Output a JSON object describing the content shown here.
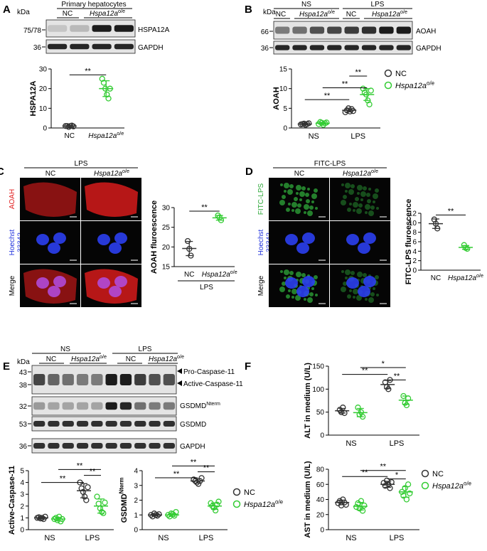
{
  "figure": {
    "panels": {
      "A": {
        "letter": "A",
        "kda": "kDa",
        "header": "Primary hepatocytes",
        "lanes": [
          "NC",
          {
            "text": "Hspa12a",
            "sup": "o/e"
          }
        ],
        "markers": [
          "75/78",
          "36"
        ],
        "bands": [
          "HSPA12A",
          "GAPDH"
        ]
      },
      "B": {
        "letter": "B",
        "kda": "kDa",
        "groups": [
          "NS",
          "LPS"
        ],
        "lanes": [
          "NC",
          {
            "text": "Hspa12a",
            "sup": "o/e"
          },
          "NC",
          {
            "text": "Hspa12a",
            "sup": "o/e"
          }
        ],
        "markers": [
          "66",
          "36"
        ],
        "bands": [
          "AOAH",
          "GAPDH"
        ]
      },
      "C": {
        "letter": "C",
        "header": "LPS",
        "lanes": [
          "NC",
          {
            "text": "Hspa12a",
            "sup": "o/e"
          }
        ],
        "rows": [
          "AOAH",
          [
            "Hoechst",
            "33342"
          ],
          "Merge"
        ]
      },
      "D": {
        "letter": "D",
        "header": "FITC-LPS",
        "lanes": [
          "NC",
          {
            "text": "Hspa12a",
            "sup": "o/e"
          }
        ],
        "rows": [
          "FITC-LPS",
          [
            "Hoechst",
            "33342"
          ],
          "Merge"
        ]
      },
      "E": {
        "letter": "E",
        "kda": "kDa",
        "groups": [
          "NS",
          "LPS"
        ],
        "lanes": [
          "NC",
          {
            "text": "Hspa12a",
            "sup": "o/e"
          },
          "NC",
          {
            "text": "Hspa12a",
            "sup": "o/e"
          }
        ],
        "markers": [
          "43",
          "38",
          "32",
          "53",
          "36"
        ],
        "bands": [
          "Pro-Caspase-11",
          "Active-Caspase-11",
          {
            "text": "GSDMD",
            "sup": "Nterm"
          },
          "GSDMD",
          "GAPDH"
        ]
      },
      "F": {
        "letter": "F"
      }
    }
  },
  "chart_data": [
    {
      "type": "dot",
      "ylabel": "HSPA12A",
      "categories": [
        "NC",
        {
          "text": "Hspa12a",
          "sup": "o/e"
        }
      ],
      "colors": [
        "#333333",
        "#33cc33"
      ],
      "values": [
        [
          1,
          1,
          0.5,
          1,
          1.2,
          0.8
        ],
        [
          25,
          23,
          20,
          17,
          15,
          20
        ]
      ],
      "mean": [
        1,
        20
      ],
      "sd": [
        0.3,
        4
      ],
      "ylim": [
        0,
        30
      ],
      "yticks": [
        0,
        10,
        20,
        30
      ],
      "annotations": [
        "**"
      ]
    },
    {
      "type": "dot",
      "ylabel": "AOAH",
      "categories": [
        "NS",
        "LPS"
      ],
      "series": [
        {
          "name": "NC",
          "color": "#333333",
          "values": [
            [
              0.9,
              1,
              1.1,
              0.8,
              1,
              1.2
            ],
            [
              4,
              4.5,
              5,
              4.2,
              4.8,
              4.3
            ]
          ],
          "mean": [
            1,
            4.5
          ],
          "sd": [
            0.15,
            0.4
          ]
        },
        {
          "name": {
            "text": "Hspa12a",
            "sup": "o/e"
          },
          "color": "#33cc33",
          "values": [
            [
              1,
              1.5,
              1.3,
              0.8,
              1.2,
              1.4
            ],
            [
              10,
              9,
              8.5,
              7,
              6,
              9.5
            ]
          ],
          "mean": [
            1.2,
            8.5
          ],
          "sd": [
            0.25,
            1.5
          ]
        }
      ],
      "ylim": [
        0,
        15
      ],
      "yticks": [
        0,
        5,
        10,
        15
      ],
      "annotations": [
        "**",
        "**",
        "**"
      ]
    },
    {
      "type": "dot",
      "ylabel": "AOAH fluroescence",
      "categories": [
        "NC",
        {
          "text": "Hspa12a",
          "sup": "o/e"
        }
      ],
      "xgroup": "LPS",
      "colors": [
        "#333333",
        "#33cc33"
      ],
      "values": [
        [
          21.5,
          19.5,
          17.8
        ],
        [
          28,
          27.5,
          26.8
        ]
      ],
      "mean": [
        19.6,
        27.4
      ],
      "sd": [
        1.8,
        0.6
      ],
      "ylim": [
        15,
        30
      ],
      "yticks": [
        15,
        20,
        25,
        30
      ],
      "annotations": [
        "**"
      ]
    },
    {
      "type": "dot",
      "ylabel": "FITC-LPS fluroescence",
      "categories": [
        "NC",
        {
          "text": "Hspa12a",
          "sup": "o/e"
        }
      ],
      "colors": [
        "#333333",
        "#33cc33"
      ],
      "values": [
        [
          10.7,
          9.8,
          8.8
        ],
        [
          5.3,
          4.7,
          4.5
        ]
      ],
      "mean": [
        9.8,
        4.8
      ],
      "sd": [
        1,
        0.4
      ],
      "ylim": [
        0,
        12
      ],
      "yticks": [
        0,
        2,
        4,
        6,
        8,
        10,
        12
      ],
      "annotations": [
        "**"
      ]
    },
    {
      "type": "dot",
      "ylabel": "Active-Caspase-11",
      "categories": [
        "NS",
        "LPS"
      ],
      "series": [
        {
          "name": "NC",
          "color": "#333333",
          "values": [
            [
              1,
              1.05,
              0.95,
              1,
              0.9,
              1.1
            ],
            [
              4,
              3.5,
              3.2,
              2.8,
              2.5,
              3.6
            ]
          ],
          "mean": [
            1,
            3.3
          ],
          "sd": [
            0.07,
            0.6
          ]
        },
        {
          "name": {
            "text": "Hspa12a",
            "sup": "o/e"
          },
          "color": "#33cc33",
          "values": [
            [
              0.9,
              1,
              0.8,
              1.1,
              0.7,
              0.9
            ],
            [
              2.8,
              2.2,
              1.8,
              1.5,
              1.4,
              2.3
            ]
          ],
          "mean": [
            0.9,
            2
          ],
          "sd": [
            0.15,
            0.6
          ]
        }
      ],
      "ylim": [
        0,
        5
      ],
      "yticks": [
        0,
        1,
        2,
        3,
        4,
        5
      ],
      "annotations": [
        "**",
        "**",
        "**"
      ]
    },
    {
      "type": "dot",
      "ylabel": {
        "text": "GSDMD",
        "sup": "Nterm"
      },
      "categories": [
        "NS",
        "LPS"
      ],
      "series": [
        {
          "name": "NC",
          "color": "#333333",
          "values": [
            [
              1,
              0.9,
              1.1,
              1,
              0.95,
              1.05
            ],
            [
              3.4,
              3.3,
              3.2,
              3.1,
              3.3,
              3.5
            ]
          ],
          "mean": [
            1,
            3.3
          ],
          "sd": [
            0.07,
            0.15
          ]
        },
        {
          "name": {
            "text": "Hspa12a",
            "sup": "o/e"
          },
          "color": "#33cc33",
          "values": [
            [
              1,
              0.9,
              1.1,
              1.05,
              0.95,
              1.2
            ],
            [
              1.8,
              1.6,
              1.5,
              1.3,
              1.7,
              1.9
            ]
          ],
          "mean": [
            1,
            1.6
          ],
          "sd": [
            0.1,
            0.22
          ]
        }
      ],
      "ylim": [
        0,
        4
      ],
      "yticks": [
        0,
        1,
        2,
        3,
        4
      ],
      "annotations": [
        "**",
        "**",
        "**"
      ]
    },
    {
      "type": "dot",
      "ylabel": "ALT in medium (U/L)",
      "categories": [
        "NS",
        "LPS"
      ],
      "series": [
        {
          "name": "NC",
          "color": "#333333",
          "values": [
            [
              55,
              50,
              60,
              48
            ],
            [
              115,
              105,
              100,
              120
            ]
          ],
          "mean": [
            53,
            110
          ],
          "sd": [
            5,
            9
          ]
        },
        {
          "name": {
            "text": "Hspa12a",
            "sup": "o/e"
          },
          "color": "#33cc33",
          "values": [
            [
              60,
              45,
              50,
              40
            ],
            [
              85,
              70,
              65,
              80
            ]
          ],
          "mean": [
            49,
            76
          ],
          "sd": [
            9,
            9
          ]
        }
      ],
      "ylim": [
        0,
        150
      ],
      "yticks": [
        0,
        50,
        100,
        150
      ],
      "annotations": [
        "**",
        "*",
        "**"
      ]
    },
    {
      "type": "dot",
      "ylabel": "AST in medium (U/L)",
      "categories": [
        "NS",
        "LPS"
      ],
      "series": [
        {
          "name": "NC",
          "color": "#333333",
          "values": [
            [
              35,
              38,
              32,
              40,
              36,
              33
            ],
            [
              62,
              58,
              65,
              60,
              55,
              63
            ]
          ],
          "mean": [
            36,
            60
          ],
          "sd": [
            3,
            4
          ]
        },
        {
          "name": {
            "text": "Hspa12a",
            "sup": "o/e"
          },
          "color": "#33cc33",
          "values": [
            [
              30,
              35,
              28,
              38,
              25,
              32
            ],
            [
              50,
              45,
              55,
              40,
              60,
              48
            ]
          ],
          "mean": [
            31,
            50
          ],
          "sd": [
            5,
            7
          ]
        }
      ],
      "ylim": [
        0,
        80
      ],
      "yticks": [
        0,
        20,
        40,
        60,
        80
      ],
      "annotations": [
        "**",
        "**",
        "*"
      ]
    }
  ]
}
